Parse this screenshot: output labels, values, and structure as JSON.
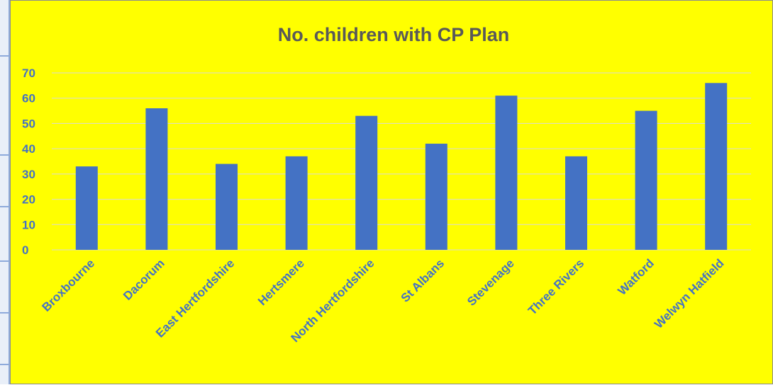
{
  "chart_data": {
    "type": "bar",
    "title": "No. children with CP Plan",
    "xlabel": "",
    "ylabel": "",
    "categories": [
      "Broxbourne",
      "Dacorum",
      "East Hertfordshire",
      "Hertsmere",
      "North Hertfordshire",
      "St Albans",
      "Stevenage",
      "Three Rivers",
      "Watford",
      "Welwyn Hatfield"
    ],
    "values": [
      33,
      56,
      34,
      37,
      53,
      42,
      61,
      37,
      55,
      66
    ],
    "ylim": [
      0,
      70
    ],
    "yticks": [
      "0",
      "10",
      "20",
      "30",
      "40",
      "50",
      "60",
      "70"
    ],
    "grid": true,
    "legend": "none",
    "colors": {
      "bar": "#4472c4",
      "background": "#ffff00",
      "gridline": "#d9d9d9",
      "title": "#595959",
      "tick_labels": "#4472c4"
    }
  }
}
